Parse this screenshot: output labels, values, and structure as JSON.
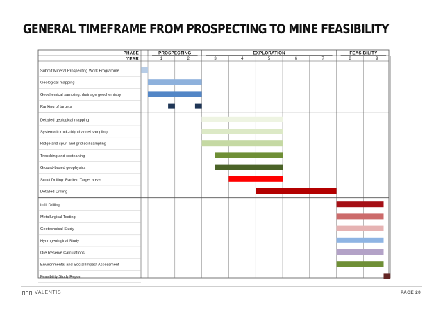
{
  "slide": {
    "title": "GENERAL TIMEFRAME FROM PROSPECTING TO MINE FEASIBILITY",
    "brand": "VALENTIS",
    "page_label": "PAGE 20"
  },
  "chart_data": {
    "type": "gantt",
    "header_labels": {
      "phase": "PHASE",
      "year": "YEAR"
    },
    "phases": [
      {
        "name": "PROSPECTING",
        "start_year": 1,
        "end_year": 2
      },
      {
        "name": "EXPLORATION",
        "start_year": 3,
        "end_year": 7
      },
      {
        "name": "FEASIBILITY",
        "start_year": 8,
        "end_year": 9
      }
    ],
    "years": [
      "1",
      "2",
      "3",
      "4",
      "5",
      "6",
      "7",
      "8",
      "9"
    ],
    "groups": [
      {
        "tasks": [
          {
            "label": "Submit Mineral Prospecting Work Programme",
            "bars": [
              {
                "start": 0.75,
                "end": 1.0,
                "color": "#b8cde6"
              }
            ]
          },
          {
            "label": "Geological mapping",
            "bars": [
              {
                "start": 1.0,
                "end": 3.0,
                "color": "#8eb1dc"
              }
            ]
          },
          {
            "label": "Geochemical sampling: drainage geochemistry",
            "bars": [
              {
                "start": 1.0,
                "end": 3.0,
                "color": "#5386c6"
              }
            ]
          },
          {
            "label": "Ranking of targets",
            "bars": [
              {
                "start": 1.75,
                "end": 2.0,
                "color": "#1f3656"
              },
              {
                "start": 2.75,
                "end": 3.0,
                "color": "#1f3656"
              }
            ]
          }
        ]
      },
      {
        "tasks": [
          {
            "label": "Detailed geological mapping",
            "bars": [
              {
                "start": 3.0,
                "end": 6.0,
                "color": "#eef4e2"
              }
            ]
          },
          {
            "label": "Systematic rock-chip channel sampling",
            "bars": [
              {
                "start": 3.0,
                "end": 6.0,
                "color": "#dce9c6"
              }
            ]
          },
          {
            "label": "Ridge and spur, and grid soil sampling",
            "bars": [
              {
                "start": 3.0,
                "end": 6.0,
                "color": "#c5d9a3"
              }
            ]
          },
          {
            "label": "Trenching and costeaning",
            "bars": [
              {
                "start": 3.5,
                "end": 6.0,
                "color": "#6f8f36"
              }
            ]
          },
          {
            "label": "Ground-based geophysics",
            "bars": [
              {
                "start": 3.5,
                "end": 6.0,
                "color": "#4b6328"
              }
            ]
          },
          {
            "label": "Scout Drilling: Ranked Target areas",
            "bars": [
              {
                "start": 4.0,
                "end": 6.0,
                "color": "#ff0000"
              }
            ]
          },
          {
            "label": "Detailed Drilling",
            "bars": [
              {
                "start": 5.0,
                "end": 8.0,
                "color": "#b30000"
              }
            ]
          }
        ]
      },
      {
        "tasks": [
          {
            "label": "Infill Drilling",
            "bars": [
              {
                "start": 8.0,
                "end": 9.75,
                "color": "#a50f15"
              }
            ]
          },
          {
            "label": "Metallurgical Testing",
            "bars": [
              {
                "start": 8.0,
                "end": 9.75,
                "color": "#cc6b6b"
              }
            ]
          },
          {
            "label": "Geotechnical Study",
            "bars": [
              {
                "start": 8.0,
                "end": 9.75,
                "color": "#e6b3b3"
              }
            ]
          },
          {
            "label": "Hydrogeological Study",
            "bars": [
              {
                "start": 8.0,
                "end": 9.75,
                "color": "#8eb4e3"
              }
            ]
          },
          {
            "label": "Ore Reserve Calculations",
            "bars": [
              {
                "start": 8.0,
                "end": 9.75,
                "color": "#b3a2c7"
              }
            ]
          },
          {
            "label": "Environmental and Social Impact Assessment",
            "bars": [
              {
                "start": 8.0,
                "end": 9.75,
                "color": "#6f8f36"
              }
            ]
          },
          {
            "label": "Feasibility Study Report",
            "bars": [
              {
                "start": 9.75,
                "end": 10.0,
                "color": "#632523"
              }
            ]
          }
        ]
      }
    ]
  }
}
